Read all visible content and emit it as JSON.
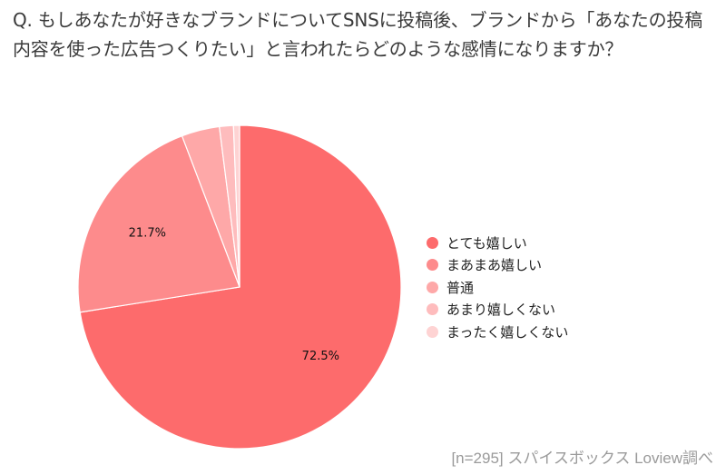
{
  "question": "Q. もしあなたが好きなブランドについてSNSに投稿後、ブランドから「あなたの投稿内容を使った広告つくりたい」と言われたらどのような感情になりますか？",
  "chart_data": {
    "type": "pie",
    "title": "Q. もしあなたが好きなブランドについてSNSに投稿後、ブランドから「あなたの投稿内容を使った広告つくりたい」と言われたらどのような感情になりますか？",
    "slices": [
      {
        "label": "とても嬉しい",
        "value": 72.5,
        "color": "#fd6b6c",
        "data_label": "72.5%"
      },
      {
        "label": "まあまあ嬉しい",
        "value": 21.7,
        "color": "#fd8b8c",
        "data_label": "21.7%"
      },
      {
        "label": "普通",
        "value": 3.8,
        "color": "#fea8a8",
        "data_label": ""
      },
      {
        "label": "あまり嬉しくない",
        "value": 1.4,
        "color": "#febcbd",
        "data_label": ""
      },
      {
        "label": "まったく嬉しくない",
        "value": 0.6,
        "color": "#fed3d3",
        "data_label": ""
      }
    ],
    "start_angle": "12 o'clock",
    "direction": "clockwise",
    "legend_position": "right"
  },
  "footer": "[n=295]  スパイスボックス Loview調べ"
}
